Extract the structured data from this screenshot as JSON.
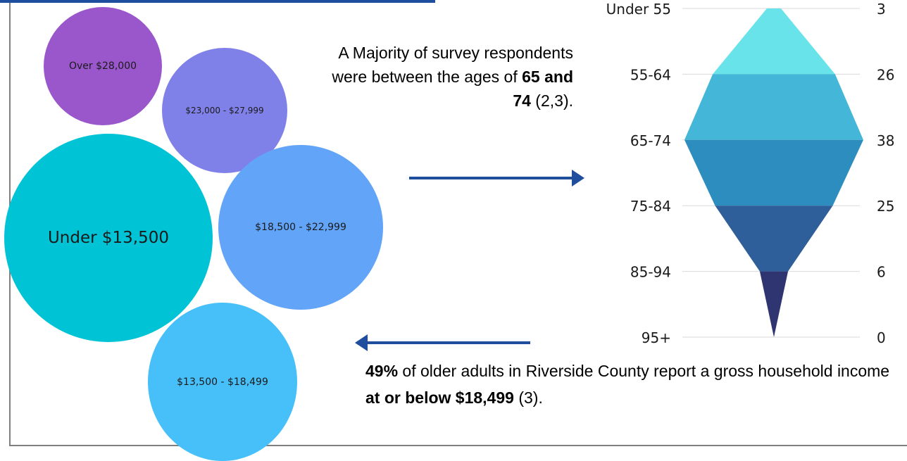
{
  "chart_data": [
    {
      "type": "bubble",
      "bubbles": [
        {
          "label": "Over $28,000",
          "color": "#9a57cc"
        },
        {
          "label": "$23,000 - $27,999",
          "color": "#7f81e8"
        },
        {
          "label": "Under $13,500",
          "color": "#00c4d6"
        },
        {
          "label": "$18,500 - $22,999",
          "color": "#62a4f7"
        },
        {
          "label": "$13,500 - $18,499",
          "color": "#47c0fa"
        }
      ]
    },
    {
      "type": "funnel",
      "categories": [
        "Under 55",
        "55-64",
        "65-74",
        "75-84",
        "85-94",
        "95+"
      ],
      "values": [
        3,
        26,
        38,
        25,
        6,
        0
      ],
      "colors": [
        "#69e3ea",
        "#44b7d8",
        "#2e8dbf",
        "#2f5f9a",
        "#2e3570"
      ],
      "grid": true
    }
  ],
  "text": {
    "majority_1": "A Majority of survey respondents were between the ages of ",
    "majority_bold": "65 and 74",
    "majority_2": " (2,3).",
    "income_bold_1": "49%",
    "income_1": " of older adults in Riverside County report a gross household income ",
    "income_bold_2": "at or below  $18,499",
    "income_2": " (3)."
  },
  "colors": {
    "arrow": "#1f4e9e",
    "frame": "#7f7f7f",
    "gridline": "#d9d9d9"
  }
}
